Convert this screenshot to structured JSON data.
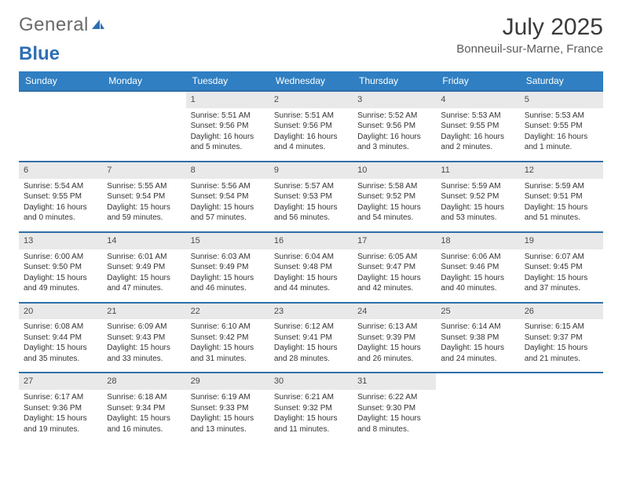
{
  "brand": {
    "part1": "General",
    "part2": "Blue"
  },
  "title": "July 2025",
  "location": "Bonneuil-sur-Marne, France",
  "colors": {
    "header_bg": "#2f7fc2",
    "header_fg": "#ffffff",
    "week_border": "#2f6fa8",
    "daynum_bg": "#e9e9e9",
    "text": "#333333",
    "brand_gray": "#6a6a6a",
    "brand_blue": "#2e6fb4"
  },
  "weekdays": [
    "Sunday",
    "Monday",
    "Tuesday",
    "Wednesday",
    "Thursday",
    "Friday",
    "Saturday"
  ],
  "weeks": [
    [
      null,
      null,
      {
        "n": "1",
        "sr": "5:51 AM",
        "ss": "9:56 PM",
        "dl": "16 hours and 5 minutes."
      },
      {
        "n": "2",
        "sr": "5:51 AM",
        "ss": "9:56 PM",
        "dl": "16 hours and 4 minutes."
      },
      {
        "n": "3",
        "sr": "5:52 AM",
        "ss": "9:56 PM",
        "dl": "16 hours and 3 minutes."
      },
      {
        "n": "4",
        "sr": "5:53 AM",
        "ss": "9:55 PM",
        "dl": "16 hours and 2 minutes."
      },
      {
        "n": "5",
        "sr": "5:53 AM",
        "ss": "9:55 PM",
        "dl": "16 hours and 1 minute."
      }
    ],
    [
      {
        "n": "6",
        "sr": "5:54 AM",
        "ss": "9:55 PM",
        "dl": "16 hours and 0 minutes."
      },
      {
        "n": "7",
        "sr": "5:55 AM",
        "ss": "9:54 PM",
        "dl": "15 hours and 59 minutes."
      },
      {
        "n": "8",
        "sr": "5:56 AM",
        "ss": "9:54 PM",
        "dl": "15 hours and 57 minutes."
      },
      {
        "n": "9",
        "sr": "5:57 AM",
        "ss": "9:53 PM",
        "dl": "15 hours and 56 minutes."
      },
      {
        "n": "10",
        "sr": "5:58 AM",
        "ss": "9:52 PM",
        "dl": "15 hours and 54 minutes."
      },
      {
        "n": "11",
        "sr": "5:59 AM",
        "ss": "9:52 PM",
        "dl": "15 hours and 53 minutes."
      },
      {
        "n": "12",
        "sr": "5:59 AM",
        "ss": "9:51 PM",
        "dl": "15 hours and 51 minutes."
      }
    ],
    [
      {
        "n": "13",
        "sr": "6:00 AM",
        "ss": "9:50 PM",
        "dl": "15 hours and 49 minutes."
      },
      {
        "n": "14",
        "sr": "6:01 AM",
        "ss": "9:49 PM",
        "dl": "15 hours and 47 minutes."
      },
      {
        "n": "15",
        "sr": "6:03 AM",
        "ss": "9:49 PM",
        "dl": "15 hours and 46 minutes."
      },
      {
        "n": "16",
        "sr": "6:04 AM",
        "ss": "9:48 PM",
        "dl": "15 hours and 44 minutes."
      },
      {
        "n": "17",
        "sr": "6:05 AM",
        "ss": "9:47 PM",
        "dl": "15 hours and 42 minutes."
      },
      {
        "n": "18",
        "sr": "6:06 AM",
        "ss": "9:46 PM",
        "dl": "15 hours and 40 minutes."
      },
      {
        "n": "19",
        "sr": "6:07 AM",
        "ss": "9:45 PM",
        "dl": "15 hours and 37 minutes."
      }
    ],
    [
      {
        "n": "20",
        "sr": "6:08 AM",
        "ss": "9:44 PM",
        "dl": "15 hours and 35 minutes."
      },
      {
        "n": "21",
        "sr": "6:09 AM",
        "ss": "9:43 PM",
        "dl": "15 hours and 33 minutes."
      },
      {
        "n": "22",
        "sr": "6:10 AM",
        "ss": "9:42 PM",
        "dl": "15 hours and 31 minutes."
      },
      {
        "n": "23",
        "sr": "6:12 AM",
        "ss": "9:41 PM",
        "dl": "15 hours and 28 minutes."
      },
      {
        "n": "24",
        "sr": "6:13 AM",
        "ss": "9:39 PM",
        "dl": "15 hours and 26 minutes."
      },
      {
        "n": "25",
        "sr": "6:14 AM",
        "ss": "9:38 PM",
        "dl": "15 hours and 24 minutes."
      },
      {
        "n": "26",
        "sr": "6:15 AM",
        "ss": "9:37 PM",
        "dl": "15 hours and 21 minutes."
      }
    ],
    [
      {
        "n": "27",
        "sr": "6:17 AM",
        "ss": "9:36 PM",
        "dl": "15 hours and 19 minutes."
      },
      {
        "n": "28",
        "sr": "6:18 AM",
        "ss": "9:34 PM",
        "dl": "15 hours and 16 minutes."
      },
      {
        "n": "29",
        "sr": "6:19 AM",
        "ss": "9:33 PM",
        "dl": "15 hours and 13 minutes."
      },
      {
        "n": "30",
        "sr": "6:21 AM",
        "ss": "9:32 PM",
        "dl": "15 hours and 11 minutes."
      },
      {
        "n": "31",
        "sr": "6:22 AM",
        "ss": "9:30 PM",
        "dl": "15 hours and 8 minutes."
      },
      null,
      null
    ]
  ],
  "labels": {
    "sunrise": "Sunrise:",
    "sunset": "Sunset:",
    "daylight": "Daylight:"
  }
}
